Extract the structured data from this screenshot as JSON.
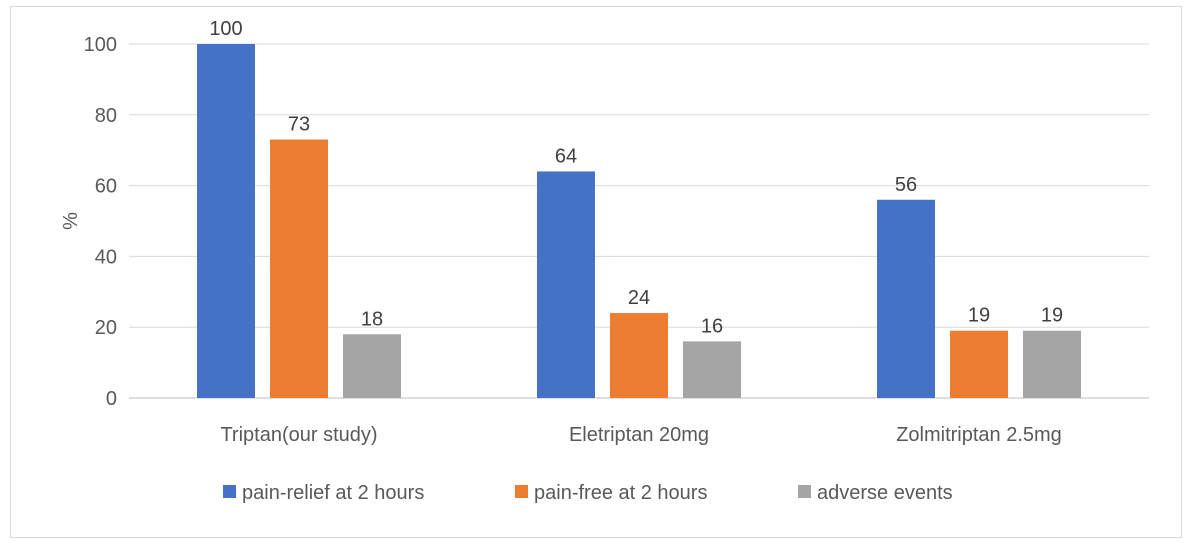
{
  "chart_data": {
    "type": "bar",
    "categories": [
      "Triptan(our study)",
      "Eletriptan 20mg",
      "Zolmitriptan 2.5mg"
    ],
    "series": [
      {
        "name": "pain-relief at 2 hours",
        "color": "#4472c4",
        "values": [
          100,
          64,
          56
        ],
        "labels": [
          "100",
          "64",
          "56"
        ]
      },
      {
        "name": "pain-free at 2 hours",
        "color": "#ed7d31",
        "values": [
          73,
          24,
          19
        ],
        "labels": [
          "73",
          "24",
          "19"
        ]
      },
      {
        "name": "adverse events",
        "color": "#a5a5a5",
        "values": [
          18,
          16,
          19
        ],
        "labels": [
          "18",
          "16",
          "19"
        ]
      }
    ],
    "title": "",
    "xlabel": "",
    "ylabel": "%",
    "ylim": [
      0,
      100
    ],
    "yticks": [
      0,
      20,
      40,
      60,
      80,
      100
    ],
    "grid": true,
    "legend": "bottom"
  }
}
